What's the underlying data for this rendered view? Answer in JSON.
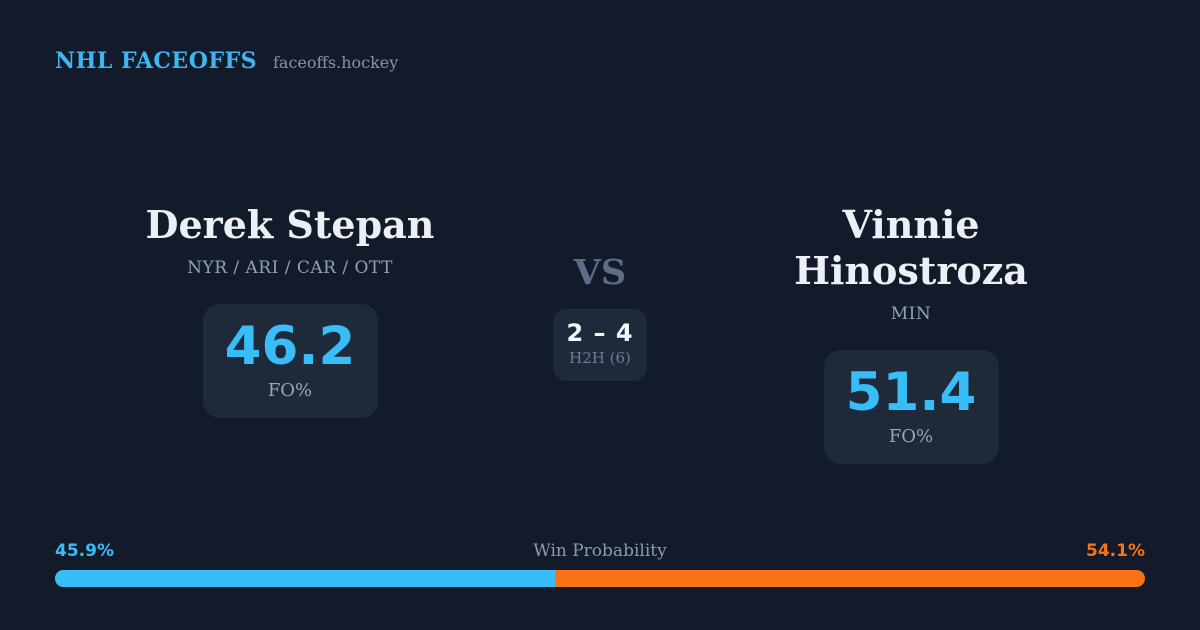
{
  "header": {
    "title": "NHL FACEOFFS",
    "site": "faceoffs.hockey"
  },
  "players": {
    "left": {
      "name": "Derek Stepan",
      "teams": "NYR / ARI / CAR / OTT",
      "fo_pct": "46.2",
      "stat_label": "FO%"
    },
    "right": {
      "name": "Vinnie Hinostroza",
      "teams": "MIN",
      "fo_pct": "51.4",
      "stat_label": "FO%"
    }
  },
  "matchup": {
    "vs_label": "VS",
    "h2h_score": "2 – 4",
    "h2h_label": "H2H (6)"
  },
  "win_probability": {
    "label": "Win Probability",
    "left_pct": "45.9%",
    "right_pct": "54.1%",
    "left_value": 45.9,
    "right_value": 54.1
  },
  "colors": {
    "background": "#131b2b",
    "card": "#1e2a3a",
    "accent_blue": "#38bdf8",
    "accent_orange": "#f97316",
    "text_primary": "#ecf0f6",
    "text_muted": "#94a0b5",
    "vs_text": "#5c6d85"
  },
  "chart_data": {
    "type": "bar",
    "title": "Win Probability",
    "categories": [
      "Derek Stepan",
      "Vinnie Hinostroza"
    ],
    "series": [
      {
        "name": "Win Probability %",
        "values": [
          45.9,
          54.1
        ]
      },
      {
        "name": "FO%",
        "values": [
          46.2,
          51.4
        ]
      },
      {
        "name": "H2H faceoff wins (of 6)",
        "values": [
          2,
          4
        ]
      }
    ],
    "xlabel": "",
    "ylabel": "",
    "legend_position": "none",
    "layout": "single horizontal stacked probability bar, blue segment left (45.9%), orange segment right (54.1%)"
  }
}
